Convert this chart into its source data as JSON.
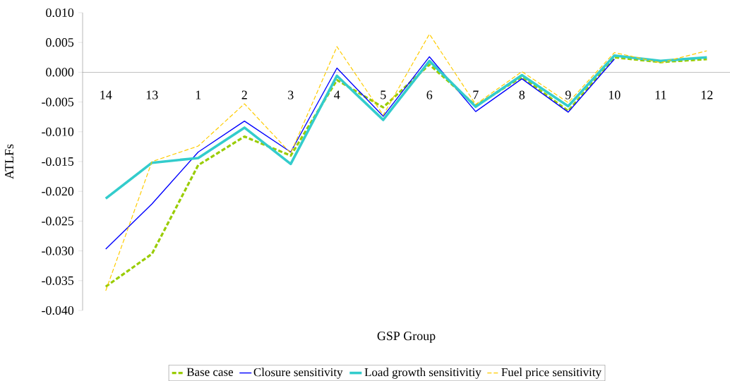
{
  "chart_data": {
    "type": "line",
    "xlabel": "GSP Group",
    "ylabel": "ATLFs",
    "categories": [
      "14",
      "13",
      "1",
      "2",
      "3",
      "4",
      "5",
      "6",
      "7",
      "8",
      "9",
      "10",
      "11",
      "12"
    ],
    "series": [
      {
        "name": "Base case",
        "color": "#99cc00",
        "line_style": "dashed",
        "values": [
          -0.036,
          -0.0305,
          -0.0156,
          -0.0108,
          -0.014,
          -0.0013,
          -0.0059,
          0.0013,
          -0.0056,
          -0.0008,
          -0.0065,
          0.0025,
          0.0017,
          0.0022
        ]
      },
      {
        "name": "Closure sensitivity",
        "color": "#0000ff",
        "line_style": "solid",
        "values": [
          -0.0297,
          -0.0221,
          -0.0134,
          -0.0082,
          -0.0134,
          0.0007,
          -0.0074,
          0.0026,
          -0.0066,
          -0.0011,
          -0.0067,
          0.0022,
          null,
          null
        ]
      },
      {
        "name": "Load growth sensitivitiy",
        "color": "#33cccc",
        "line_style": "solid",
        "values": [
          -0.0212,
          -0.0152,
          -0.0144,
          -0.0093,
          -0.0154,
          -0.0006,
          -0.008,
          0.0019,
          -0.0058,
          -0.0005,
          -0.0057,
          0.0028,
          0.0019,
          0.0025
        ]
      },
      {
        "name": "Fuel price sensitivity",
        "color": "#ffcc00",
        "line_style": "dashed",
        "values": [
          -0.0367,
          -0.015,
          -0.0124,
          -0.0053,
          -0.0136,
          0.0043,
          -0.0072,
          0.0064,
          -0.0054,
          0.0001,
          -0.0051,
          0.0033,
          0.0016,
          0.0036
        ]
      }
    ],
    "ylim": [
      -0.04,
      0.01
    ],
    "yticks": [
      {
        "value": -0.04,
        "label": "-0.040"
      },
      {
        "value": -0.035,
        "label": "-0.035"
      },
      {
        "value": -0.03,
        "label": "-0.030"
      },
      {
        "value": -0.025,
        "label": "-0.025"
      },
      {
        "value": -0.02,
        "label": "-0.020"
      },
      {
        "value": -0.015,
        "label": "-0.015"
      },
      {
        "value": -0.01,
        "label": "-0.010"
      },
      {
        "value": -0.005,
        "label": "-0.005"
      },
      {
        "value": 0,
        "label": "0.000"
      },
      {
        "value": 0.005,
        "label": "0.005"
      },
      {
        "value": 0.01,
        "label": "0.010"
      }
    ],
    "grid": false,
    "legend": "bottom",
    "marker": "none"
  }
}
